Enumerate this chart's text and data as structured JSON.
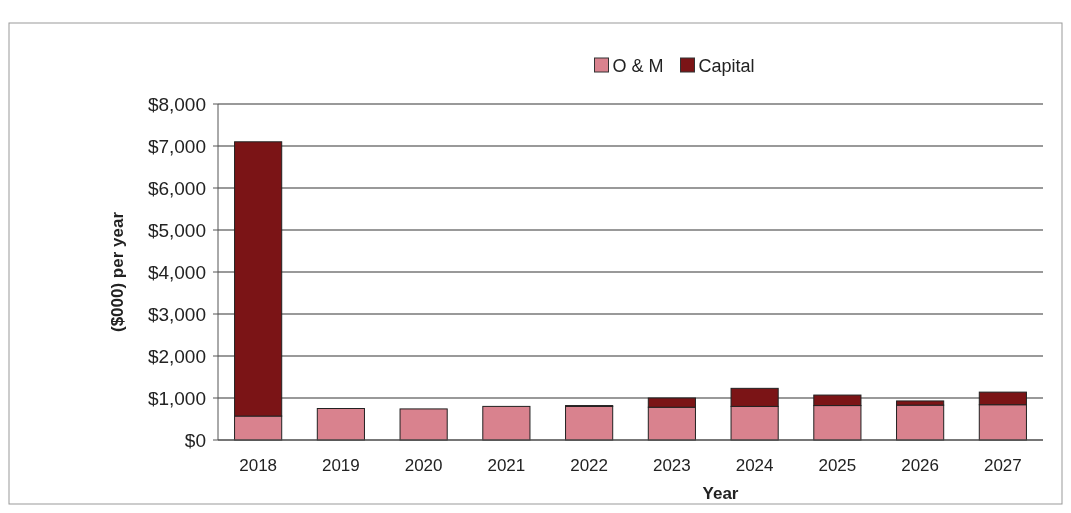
{
  "chart_data": {
    "type": "bar",
    "stacked": true,
    "xlabel": "Year",
    "ylabel": "($000) per year",
    "categories": [
      "2018",
      "2019",
      "2020",
      "2021",
      "2022",
      "2023",
      "2024",
      "2025",
      "2026",
      "2027"
    ],
    "series": [
      {
        "name": "O & M",
        "color": "#d9828e",
        "values": [
          570,
          750,
          740,
          800,
          800,
          780,
          800,
          820,
          830,
          840
        ]
      },
      {
        "name": "Capital",
        "color": "#7b1416",
        "values": [
          6530,
          0,
          0,
          0,
          20,
          220,
          430,
          250,
          100,
          300
        ]
      }
    ],
    "ylim": [
      0,
      8000
    ],
    "yticks": [
      {
        "value": 0,
        "label": "$0"
      },
      {
        "value": 1000,
        "label": "$1,000"
      },
      {
        "value": 2000,
        "label": "$2,000"
      },
      {
        "value": 3000,
        "label": "$3,000"
      },
      {
        "value": 4000,
        "label": "$4,000"
      },
      {
        "value": 5000,
        "label": "$5,000"
      },
      {
        "value": 6000,
        "label": "$6,000"
      },
      {
        "value": 7000,
        "label": "$7,000"
      },
      {
        "value": 8000,
        "label": "$8,000"
      }
    ],
    "grid": "y",
    "legend": "top"
  }
}
